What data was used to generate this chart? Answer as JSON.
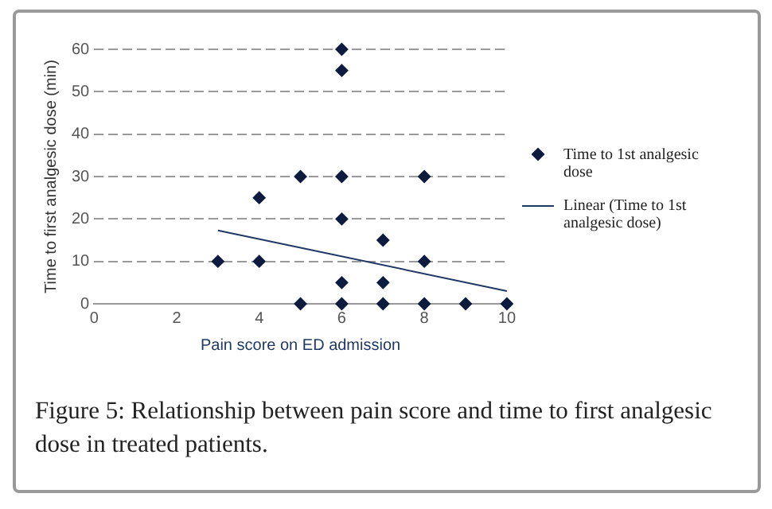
{
  "chart_data": {
    "type": "scatter",
    "xlabel": "Pain score on ED admission",
    "ylabel": "Time to first analgesic dose (min)",
    "xlim": [
      0,
      10
    ],
    "xticks": [
      0,
      2,
      4,
      6,
      8,
      10
    ],
    "ylim": [
      0,
      60
    ],
    "yticks": [
      0,
      10,
      20,
      30,
      40,
      50,
      60
    ],
    "series": [
      {
        "name": "Time to 1st analgesic dose",
        "color": "#0d1b3e",
        "marker": "diamond",
        "x": [
          3,
          4,
          4,
          5,
          5,
          6,
          6,
          6,
          6,
          6,
          6,
          7,
          7,
          7,
          8,
          8,
          8,
          9,
          10
        ],
        "values": [
          10,
          10,
          25,
          30,
          0,
          60,
          55,
          30,
          20,
          5,
          0,
          15,
          5,
          0,
          30,
          10,
          0,
          0,
          0
        ]
      },
      {
        "name": "Linear (Time to 1st analgesic dose)",
        "type": "line",
        "color": "#1f3864",
        "marker": "none",
        "line_style": "solid",
        "x": [
          3,
          10
        ],
        "values": [
          17.3,
          3
        ]
      }
    ],
    "grid": "y",
    "legend": "right",
    "annotations": [
      "Figure 5: Relationship between pain score and time to first analgesic dose in treated patients."
    ]
  }
}
